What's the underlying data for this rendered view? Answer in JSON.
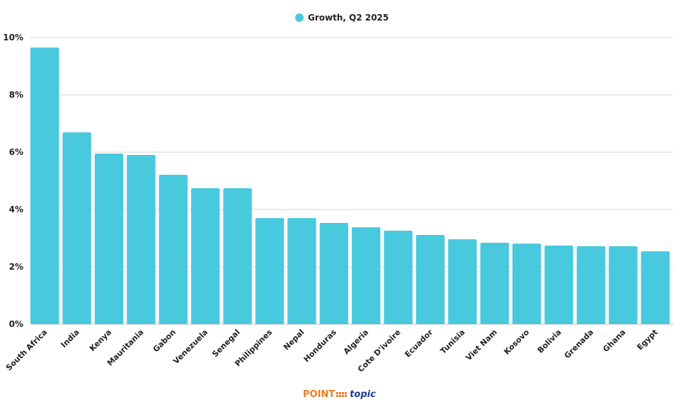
{
  "chart_data": {
    "type": "bar",
    "title": "",
    "xlabel": "",
    "ylabel": "",
    "ylim": [
      0,
      10
    ],
    "yticks": [
      "0%",
      "2%",
      "4%",
      "6%",
      "8%",
      "10%"
    ],
    "ytick_values": [
      0,
      2,
      4,
      6,
      8,
      10
    ],
    "grid": true,
    "legend_position": "top-center",
    "categories": [
      "South Africa",
      "India",
      "Kenya",
      "Mauritania",
      "Gabon",
      "Venezuela",
      "Senegal",
      "Philippines",
      "Nepal",
      "Honduras",
      "Algeria",
      "Cote D'ivoire",
      "Ecuador",
      "Tunisia",
      "Viet Nam",
      "Kosovo",
      "Bolivia",
      "Grenada",
      "Ghana",
      "Egypt"
    ],
    "series": [
      {
        "name": "Growth, Q2 2025",
        "color": "#48c9de",
        "values": [
          9.65,
          6.69,
          5.95,
          5.9,
          5.21,
          4.74,
          4.74,
          3.7,
          3.7,
          3.53,
          3.38,
          3.26,
          3.11,
          2.96,
          2.84,
          2.81,
          2.74,
          2.72,
          2.72,
          2.54
        ]
      }
    ]
  },
  "logo": {
    "text_left": "POINT",
    "text_right": "topic"
  }
}
